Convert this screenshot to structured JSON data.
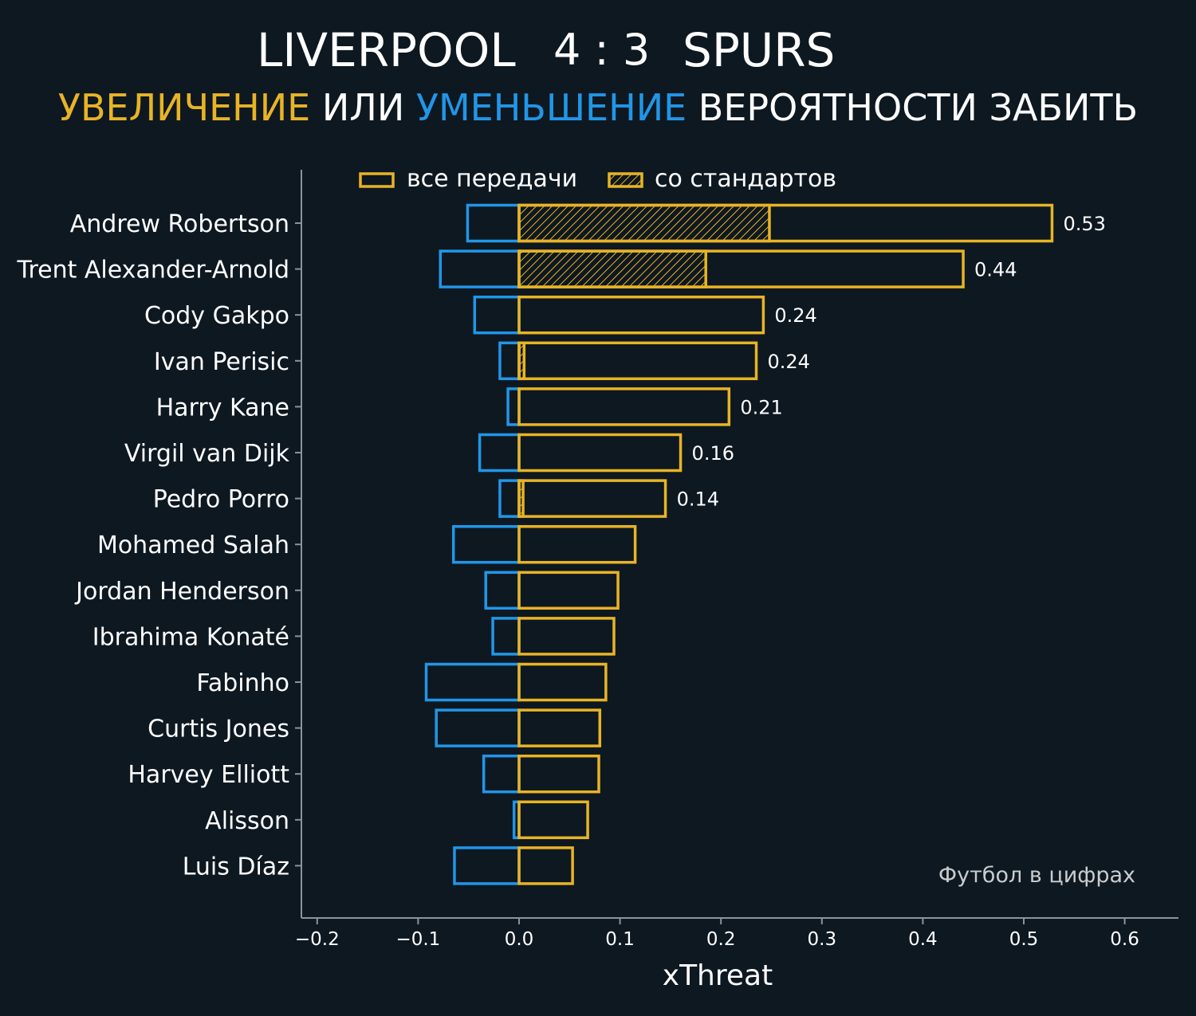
{
  "header": {
    "home_team": "LIVERPOOL",
    "score": "4 : 3",
    "away_team": "SPURS",
    "subtitle_increase": "УВЕЛИЧЕНИЕ",
    "subtitle_or": "ИЛИ",
    "subtitle_decrease": "УМЕНЬШЕНИЕ",
    "subtitle_rest": "ВЕРОЯТНОСТИ ЗАБИТЬ"
  },
  "watermark": "Футбол в цифрах",
  "colors": {
    "background": "#0e1821",
    "increase": "#e8b425",
    "decrease": "#2196e8",
    "text": "#ffffff",
    "axis": "#8a9499"
  },
  "chart_data": {
    "type": "bar",
    "orientation": "horizontal",
    "xlabel": "xThreat",
    "xlim": [
      -0.215,
      0.65
    ],
    "xticks": [
      -0.2,
      -0.1,
      0.0,
      0.1,
      0.2,
      0.3,
      0.4,
      0.5,
      0.6
    ],
    "xtick_labels": [
      "−0.2",
      "−0.1",
      "0.0",
      "0.1",
      "0.2",
      "0.3",
      "0.4",
      "0.5",
      "0.6"
    ],
    "legend": {
      "placement": "top",
      "entries": [
        {
          "label": "все передачи",
          "style": "outline"
        },
        {
          "label": "со стандартов",
          "style": "hatched"
        }
      ]
    },
    "categories": [
      "Andrew Robertson",
      "Trent Alexander-Arnold",
      "Cody Gakpo",
      "Ivan Perisic",
      "Harry Kane",
      "Virgil van Dijk",
      "Pedro Porro",
      "Mohamed Salah",
      "Jordan Henderson",
      "Ibrahima Konaté",
      "Fabinho",
      "Curtis Jones",
      "Harvey Elliott",
      "Alisson",
      "Luis Díaz"
    ],
    "series": [
      {
        "name": "все передачи",
        "values": [
          0.528,
          0.44,
          0.242,
          0.235,
          0.208,
          0.16,
          0.145,
          0.115,
          0.098,
          0.094,
          0.086,
          0.08,
          0.079,
          0.068,
          0.053
        ]
      },
      {
        "name": "со стандартов",
        "values": [
          0.248,
          0.185,
          0,
          0.005,
          0,
          0,
          0.004,
          0,
          0,
          0,
          0,
          0,
          0,
          0,
          0
        ]
      },
      {
        "values": [
          -0.051,
          -0.078,
          -0.044,
          -0.019,
          -0.011,
          -0.039,
          -0.019,
          -0.065,
          -0.033,
          -0.026,
          -0.092,
          -0.082,
          -0.035,
          -0.005,
          -0.064
        ]
      }
    ],
    "value_labels": [
      "0.53",
      "0.44",
      "0.24",
      "0.24",
      "0.21",
      "0.16",
      "0.14",
      "",
      "",
      "",
      "",
      "",
      "",
      "",
      ""
    ]
  }
}
